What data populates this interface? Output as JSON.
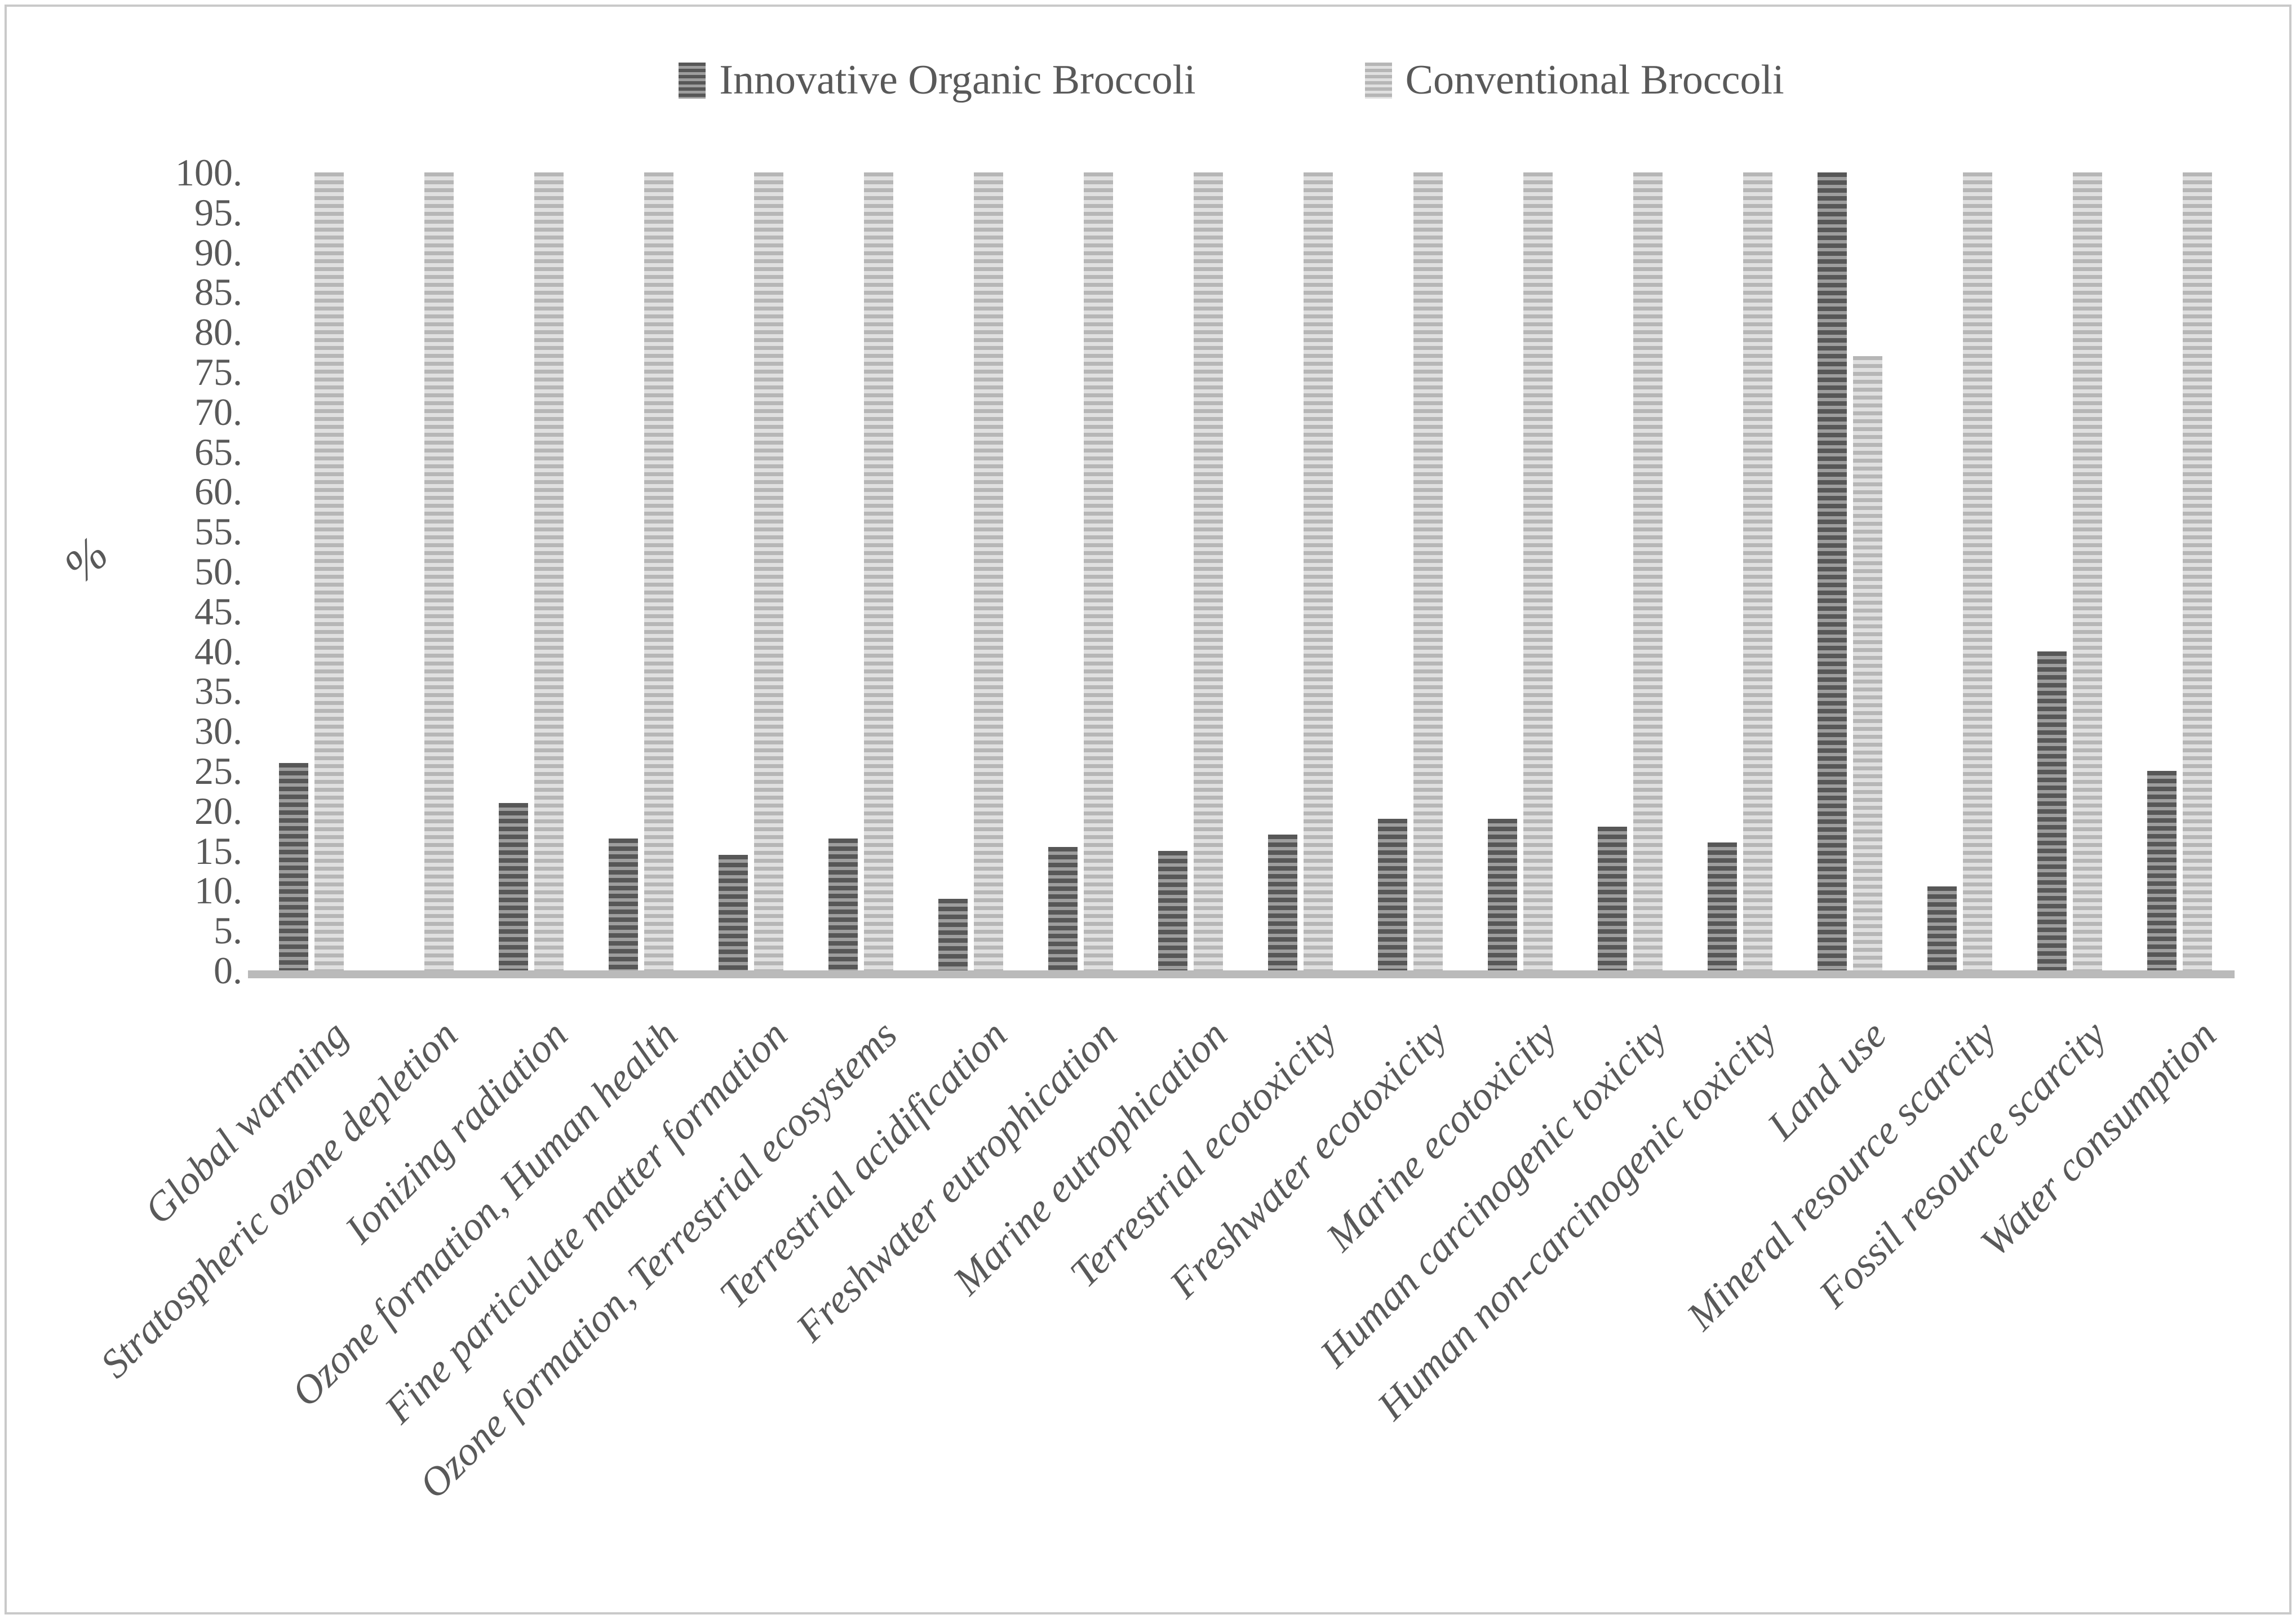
{
  "legend": {
    "items": [
      {
        "label": "Innovative Organic Broccoli",
        "series": "innovative"
      },
      {
        "label": "Conventional Broccoli",
        "series": "conventional"
      }
    ]
  },
  "y_axis": {
    "title": "%",
    "min": 0,
    "max": 100,
    "step": 5,
    "tick_suffix": "."
  },
  "chart_data": {
    "type": "bar",
    "title": "",
    "xlabel": "",
    "ylabel": "%",
    "ylim": [
      0,
      100
    ],
    "grid": false,
    "legend_position": "top",
    "bar_pattern": "horizontal-stripes",
    "categories": [
      "Global warming",
      "Stratospheric ozone depletion",
      "Ionizing radiation",
      "Ozone formation, Human health",
      "Fine particulate matter formation",
      "Ozone formation, Terrestrial ecosystems",
      "Terrestrial acidification",
      "Freshwater eutrophication",
      "Marine eutrophication",
      "Terrestrial ecotoxicity",
      "Freshwater ecotoxicity",
      "Marine ecotoxicity",
      "Human carcinogenic toxicity",
      "Human non-carcinogenic toxicity",
      "Land use",
      "Mineral resource scarcity",
      "Fossil resource scarcity",
      "Water consumption"
    ],
    "series": [
      {
        "name": "Innovative Organic Broccoli",
        "values": [
          26,
          0,
          21,
          16.5,
          14.5,
          16.5,
          9,
          15.5,
          15,
          17,
          19,
          19,
          18,
          16,
          100,
          10.5,
          40,
          25
        ]
      },
      {
        "name": "Conventional Broccoli",
        "values": [
          100,
          100,
          100,
          100,
          100,
          100,
          100,
          100,
          100,
          100,
          100,
          100,
          100,
          100,
          77,
          100,
          100,
          100
        ]
      }
    ],
    "colors": {
      "innovative_stripe_dark": "#575757",
      "innovative_stripe_light": "#9e9e9e",
      "conventional_stripe_dark": "#b6b6b6",
      "conventional_stripe_light": "#e0e0e0",
      "axis_text": "#595959",
      "baseline": "#bababa"
    }
  }
}
